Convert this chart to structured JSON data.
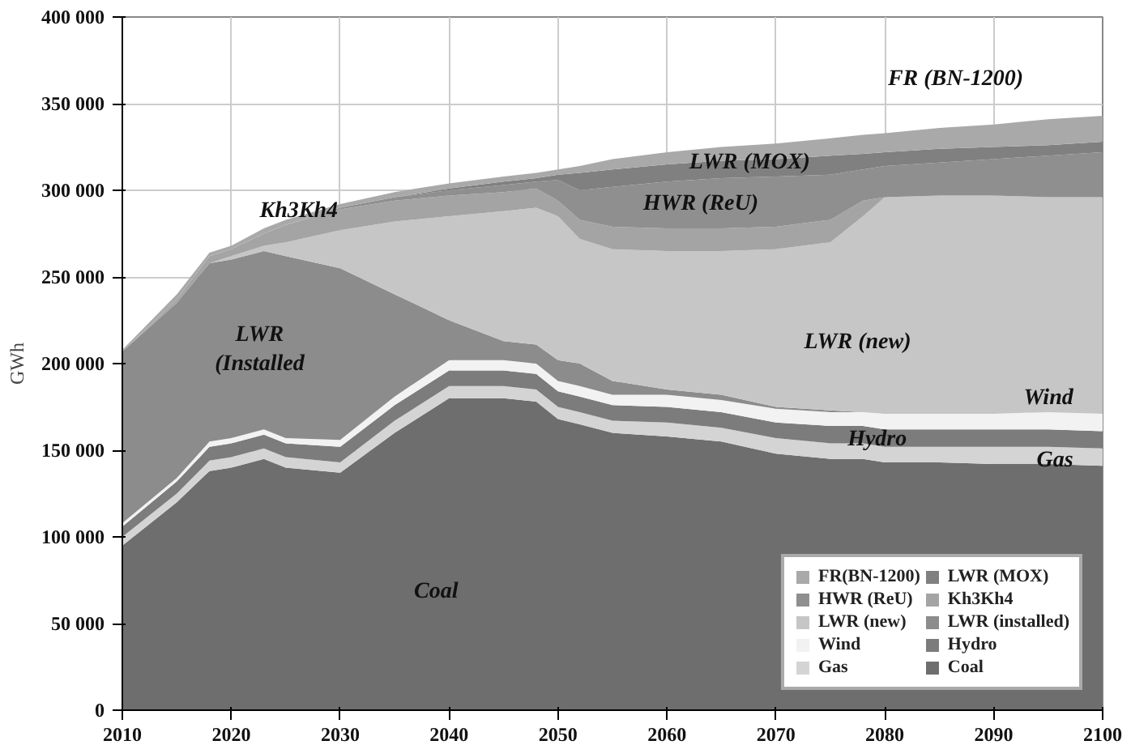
{
  "chart_data": {
    "type": "area",
    "stacked": true,
    "ylabel": "GWh",
    "x": [
      2010,
      2015,
      2018,
      2020,
      2023,
      2025,
      2030,
      2035,
      2040,
      2045,
      2048,
      2050,
      2052,
      2055,
      2060,
      2065,
      2070,
      2075,
      2078,
      2080,
      2085,
      2090,
      2095,
      2100
    ],
    "series": [
      {
        "name": "Coal",
        "color": "#6e6e6e",
        "values": [
          95000,
          120000,
          138000,
          140000,
          145000,
          140000,
          137000,
          160000,
          180000,
          180000,
          178000,
          168000,
          165000,
          160000,
          158000,
          155000,
          148000,
          145000,
          145000,
          143000,
          143000,
          142000,
          142000,
          141000
        ]
      },
      {
        "name": "Gas",
        "color": "#d4d4d4",
        "values": [
          5000,
          5000,
          6000,
          6000,
          6000,
          6000,
          6000,
          7000,
          7000,
          7000,
          7000,
          7000,
          7000,
          7000,
          8000,
          8000,
          9000,
          9000,
          9000,
          9000,
          9000,
          10000,
          10000,
          10000
        ]
      },
      {
        "name": "Hydro",
        "color": "#7c7c7c",
        "values": [
          6000,
          7000,
          8000,
          8000,
          8000,
          8000,
          9000,
          9000,
          9000,
          9000,
          9000,
          9000,
          9000,
          9000,
          9000,
          9000,
          9000,
          10000,
          10000,
          10000,
          10000,
          10000,
          10000,
          10000
        ]
      },
      {
        "name": "Wind",
        "color": "#f2f2f2",
        "values": [
          2000,
          2000,
          3000,
          3000,
          3000,
          3000,
          4000,
          5000,
          6000,
          6000,
          6000,
          6000,
          6000,
          6000,
          7000,
          7000,
          8000,
          8000,
          8000,
          9000,
          9000,
          9000,
          10000,
          10000
        ]
      },
      {
        "name": "LWR (installed)",
        "color": "#8c8c8c",
        "values": [
          99000,
          101000,
          103000,
          103000,
          103000,
          105000,
          99000,
          59000,
          23000,
          11000,
          11000,
          12000,
          13000,
          8000,
          3000,
          3000,
          1000,
          1000,
          0,
          0,
          0,
          0,
          0,
          0
        ]
      },
      {
        "name": "LWR (new)",
        "color": "#c6c6c6",
        "values": [
          0,
          0,
          0,
          2000,
          3000,
          8000,
          22000,
          42000,
          60000,
          75000,
          79000,
          83000,
          72000,
          76000,
          80000,
          83000,
          91000,
          97000,
          113000,
          125000,
          126000,
          126000,
          124000,
          125000
        ]
      },
      {
        "name": "Kh3Kh4",
        "color": "#a4a4a4",
        "values": [
          0,
          2000,
          4000,
          4000,
          7000,
          10000,
          12000,
          12000,
          12000,
          11000,
          11000,
          9000,
          11000,
          13000,
          13000,
          13000,
          13000,
          13000,
          9000,
          0,
          0,
          0,
          0,
          0
        ]
      },
      {
        "name": "HWR (ReU)",
        "color": "#8f8f8f",
        "values": [
          0,
          0,
          0,
          0,
          0,
          0,
          1000,
          2000,
          3000,
          4000,
          4000,
          12000,
          17000,
          23000,
          27000,
          29000,
          29000,
          26000,
          18000,
          18000,
          19000,
          21000,
          24000,
          26000
        ]
      },
      {
        "name": "LWR (MOX)",
        "color": "#808080",
        "values": [
          0,
          0,
          0,
          0,
          0,
          0,
          0,
          0,
          1000,
          2000,
          2000,
          3000,
          10000,
          10000,
          10000,
          10000,
          10000,
          11000,
          9000,
          8000,
          8000,
          7000,
          6000,
          6000
        ]
      },
      {
        "name": "FR(BN-1200)",
        "color": "#a9a9a9",
        "values": [
          1000,
          3000,
          2000,
          2000,
          3000,
          3000,
          2000,
          3000,
          3000,
          3000,
          3000,
          3000,
          4000,
          6000,
          7000,
          8000,
          9000,
          10000,
          11000,
          11000,
          12000,
          13000,
          15000,
          15000
        ]
      }
    ],
    "xlim": [
      2010,
      2100
    ],
    "xticks": [
      2010,
      2020,
      2030,
      2040,
      2050,
      2060,
      2070,
      2080,
      2090,
      2100
    ],
    "ylim": [
      0,
      400000
    ],
    "yticks": [
      {
        "value": 0,
        "label": "0"
      },
      {
        "value": 50000,
        "label": "50 000"
      },
      {
        "value": 100000,
        "label": "100 000"
      },
      {
        "value": 150000,
        "label": "150 000"
      },
      {
        "value": 200000,
        "label": "200 000"
      },
      {
        "value": 250000,
        "label": "250 000"
      },
      {
        "value": 300000,
        "label": "300 000"
      },
      {
        "value": 350000,
        "label": "350 000"
      },
      {
        "value": 400000,
        "label": "400 000"
      }
    ],
    "grid": true,
    "legend": "bottom right",
    "annotations": [
      "FR (BN-1200)",
      "LWR (MOX)",
      "HWR (ReU)",
      "Kh3Kh4",
      "LWR (new)",
      "LWR\n(Installed",
      "Coal",
      "Wind",
      "Hydro",
      "Gas"
    ]
  }
}
